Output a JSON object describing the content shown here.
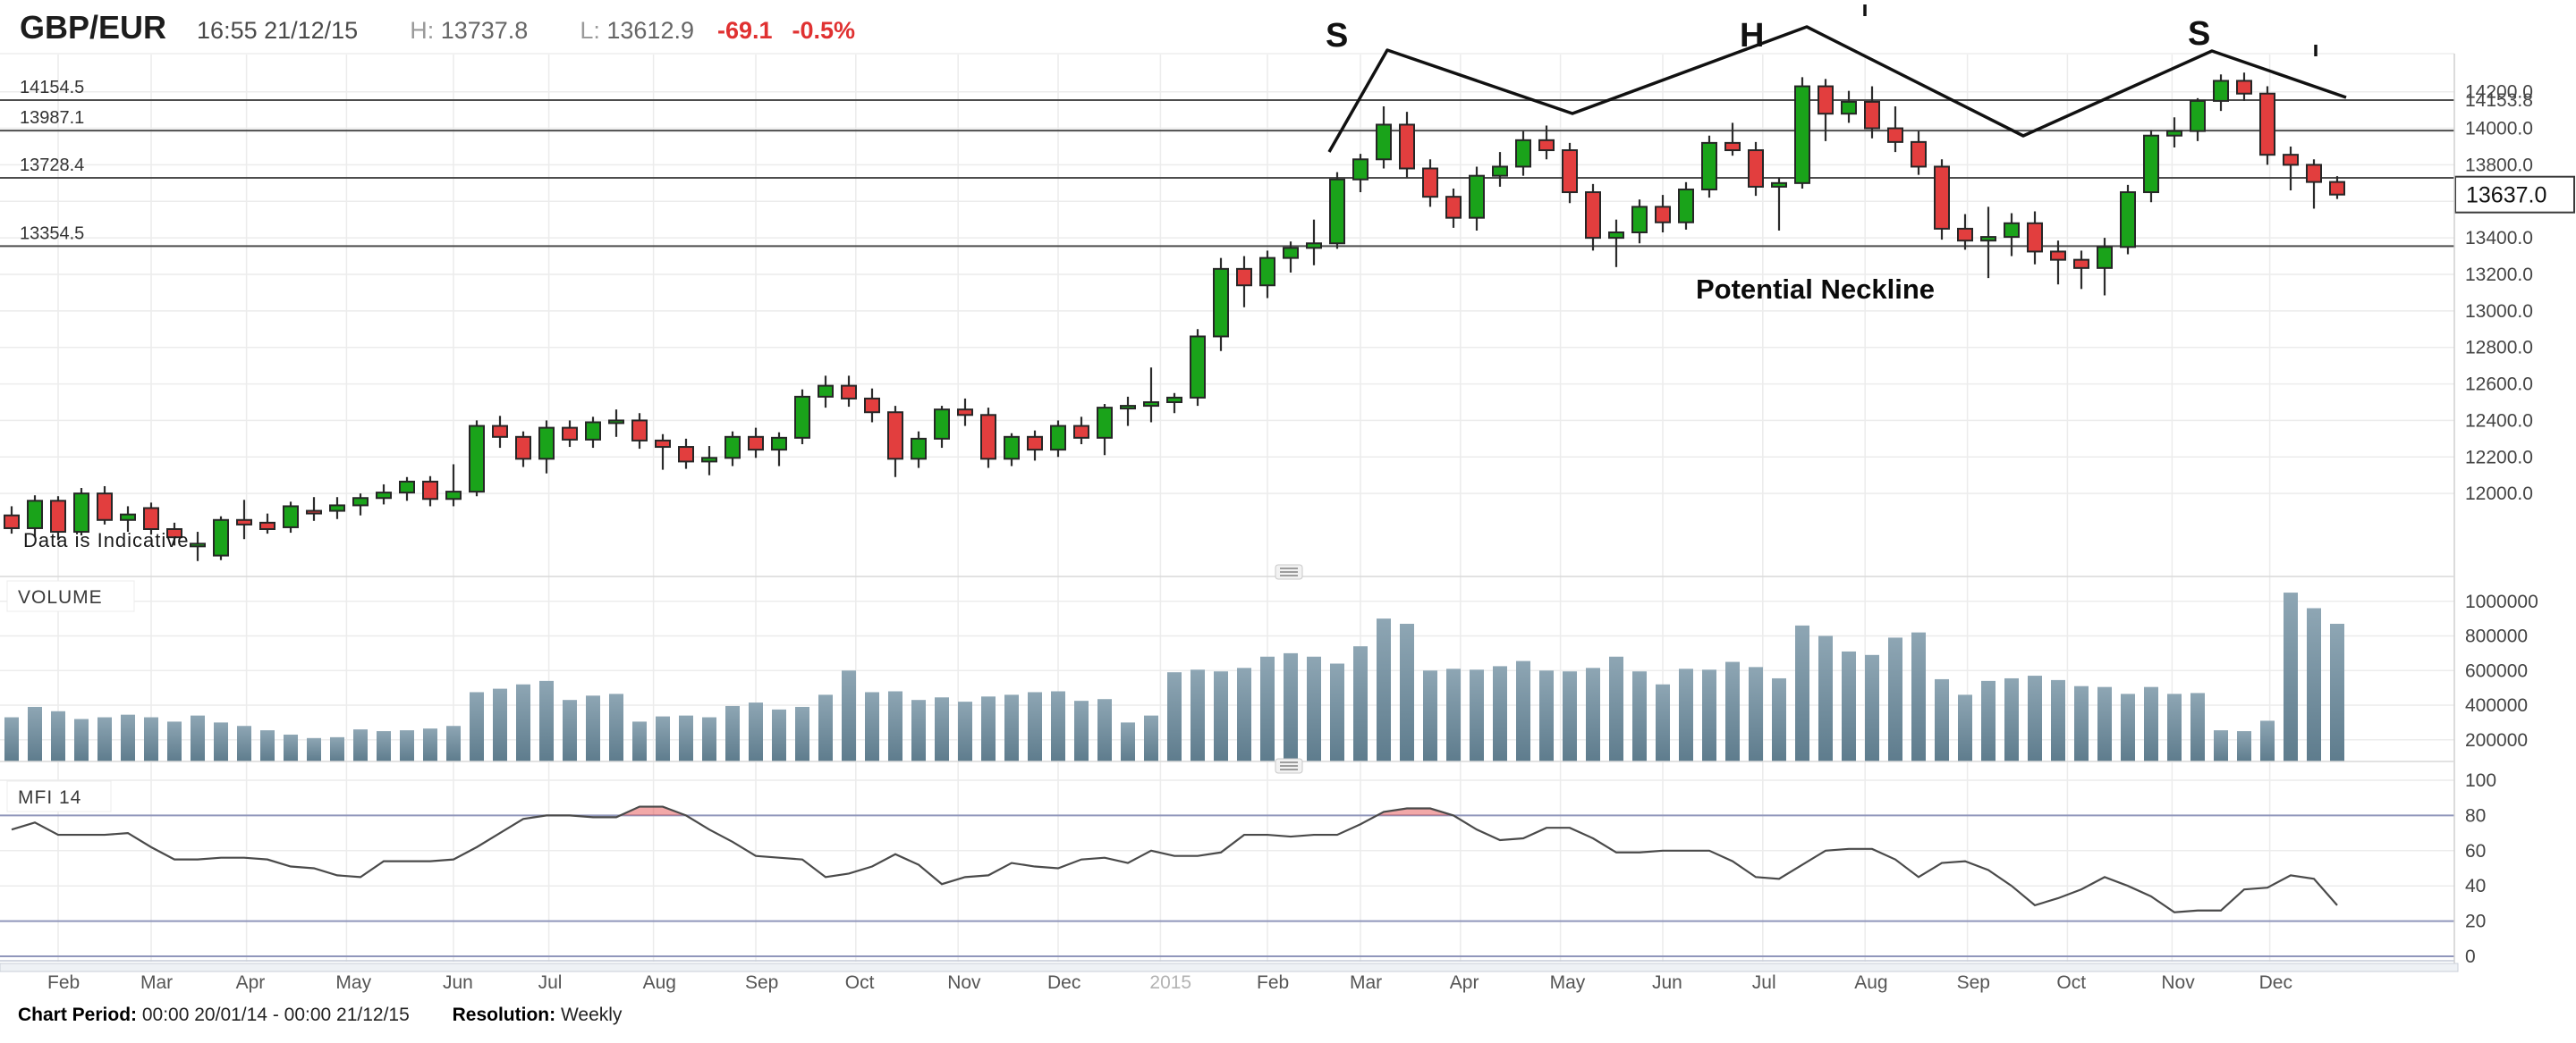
{
  "header": {
    "symbol": "GBP/EUR",
    "timestamp": "16:55 21/12/15",
    "high_label": "H:",
    "high": "13737.8",
    "low_label": "L:",
    "low": "13612.9",
    "change": "-69.1",
    "change_pct": "-0.5%"
  },
  "footer": {
    "period_label": "Chart Period:",
    "period_value": "00:00 20/01/14 - 00:00 21/12/15",
    "resolution_label": "Resolution:",
    "resolution_value": "Weekly"
  },
  "watermark": "Data is Indicative",
  "panes": {
    "volume_label": "VOLUME",
    "mfi_label": "MFI 14"
  },
  "annotations": {
    "left_shoulder": "S",
    "head": "H",
    "right_shoulder": "S",
    "neckline_label": "Potential Neckline"
  },
  "colors": {
    "up": "#1aa31a",
    "down": "#e23e3e",
    "candle_border": "#262626",
    "wick": "#2b2b2b",
    "grid": "#ececec",
    "support_line": "#4d4d4d",
    "annotation": "#111111",
    "volume_top": "#8ea6b4",
    "volume_bottom": "#5e7c8d",
    "mfi_line": "#4a4a4a",
    "mfi_threshold": "#9096bb",
    "overbought_fill": "rgba(226,62,62,0.45)",
    "negative": "#e03131",
    "axis_band": "#eef1f5",
    "axis_band_border": "#c9cfd8",
    "separator": "#d9d9d9",
    "grip_fill": "#f2f2f2",
    "grip_border": "#c9c9c9",
    "grip_lines": "#9d9d9d"
  },
  "price_axis": {
    "right_labels": [
      {
        "v": 14200,
        "t": "14200.0"
      },
      {
        "v": 14153.8,
        "t": "14153.8"
      },
      {
        "v": 14000,
        "t": "14000.0"
      },
      {
        "v": 13800,
        "t": "13800.0"
      },
      {
        "v": 13400,
        "t": "13400.0"
      },
      {
        "v": 13200,
        "t": "13200.0"
      },
      {
        "v": 13000,
        "t": "13000.0"
      },
      {
        "v": 12800,
        "t": "12800.0"
      },
      {
        "v": 12600,
        "t": "12600.0"
      },
      {
        "v": 12400,
        "t": "12400.0"
      },
      {
        "v": 12200,
        "t": "12200.0"
      },
      {
        "v": 12000,
        "t": "12000.0"
      }
    ],
    "left_levels": [
      {
        "v": 14154.5,
        "t": "14154.5"
      },
      {
        "v": 13987.1,
        "t": "13987.1"
      },
      {
        "v": 13728.4,
        "t": "13728.4"
      },
      {
        "v": 13354.5,
        "t": "13354.5"
      }
    ],
    "current": {
      "v": 13637,
      "t": "13637.0"
    }
  },
  "volume_axis": [
    {
      "v": 1000000,
      "t": "1000000"
    },
    {
      "v": 800000,
      "t": "800000"
    },
    {
      "v": 600000,
      "t": "600000"
    },
    {
      "v": 400000,
      "t": "400000"
    },
    {
      "v": 200000,
      "t": "200000"
    }
  ],
  "mfi_axis": [
    {
      "v": 100,
      "t": "100"
    },
    {
      "v": 80,
      "t": "80"
    },
    {
      "v": 60,
      "t": "60"
    },
    {
      "v": 40,
      "t": "40"
    },
    {
      "v": 20,
      "t": "20"
    },
    {
      "v": 0,
      "t": "0"
    }
  ],
  "x_axis": [
    {
      "t": "Feb",
      "w": 2.0
    },
    {
      "t": "Mar",
      "w": 6.0
    },
    {
      "t": "Apr",
      "w": 10.1
    },
    {
      "t": "May",
      "w": 14.4
    },
    {
      "t": "Jun",
      "w": 19.0
    },
    {
      "t": "Jul",
      "w": 23.1
    },
    {
      "t": "Aug",
      "w": 27.6
    },
    {
      "t": "Sep",
      "w": 32.0
    },
    {
      "t": "Oct",
      "w": 36.3
    },
    {
      "t": "Nov",
      "w": 40.7
    },
    {
      "t": "Dec",
      "w": 45.0
    },
    {
      "t": "2015",
      "w": 49.4,
      "year": true
    },
    {
      "t": "Feb",
      "w": 54.0
    },
    {
      "t": "Mar",
      "w": 58.0
    },
    {
      "t": "Apr",
      "w": 62.3
    },
    {
      "t": "May",
      "w": 66.6
    },
    {
      "t": "Jun",
      "w": 71.0
    },
    {
      "t": "Jul",
      "w": 75.3
    },
    {
      "t": "Aug",
      "w": 79.7
    },
    {
      "t": "Sep",
      "w": 84.1
    },
    {
      "t": "Oct",
      "w": 88.4
    },
    {
      "t": "Nov",
      "w": 92.9
    },
    {
      "t": "Dec",
      "w": 97.1
    }
  ],
  "chart_data": {
    "type": "candlestick",
    "title": "GBP/EUR",
    "resolution": "Weekly",
    "period_start": "00:00 20/01/14",
    "period_end": "00:00 21/12/15",
    "price_axis_range": [
      11570,
      14360
    ],
    "price_gridlines": {
      "min": 12000,
      "max": 14200,
      "step": 200
    },
    "volume_gridlines": {
      "min": 200000,
      "max": 1000000,
      "step": 200000
    },
    "mfi_gridlines": [
      0,
      20,
      40,
      60,
      80,
      100
    ],
    "mfi_overbought": 80,
    "mfi_oversold": 20,
    "support_levels": [
      14154.5,
      13987.1,
      13728.4,
      13354.5
    ],
    "current_price": 13637.0,
    "candles_ohlc": [
      [
        11880,
        11930,
        11780,
        11810
      ],
      [
        11810,
        11990,
        11760,
        11960
      ],
      [
        11960,
        11985,
        11745,
        11790
      ],
      [
        11790,
        12030,
        11770,
        12000
      ],
      [
        12000,
        12040,
        11830,
        11855
      ],
      [
        11855,
        11930,
        11790,
        11885
      ],
      [
        11920,
        11950,
        11775,
        11805
      ],
      [
        11805,
        11840,
        11715,
        11760
      ],
      [
        11720,
        11790,
        11630,
        11725
      ],
      [
        11660,
        11875,
        11635,
        11855
      ],
      [
        11855,
        11965,
        11750,
        11830
      ],
      [
        11840,
        11890,
        11780,
        11805
      ],
      [
        11815,
        11955,
        11785,
        11930
      ],
      [
        11905,
        11980,
        11850,
        11900
      ],
      [
        11905,
        11980,
        11860,
        11935
      ],
      [
        11935,
        12000,
        11880,
        11975
      ],
      [
        11975,
        12050,
        11940,
        12005
      ],
      [
        12005,
        12090,
        11960,
        12065
      ],
      [
        12065,
        12095,
        11930,
        11970
      ],
      [
        11970,
        12160,
        11930,
        12010
      ],
      [
        12010,
        12400,
        11985,
        12370
      ],
      [
        12370,
        12425,
        12250,
        12310
      ],
      [
        12310,
        12340,
        12145,
        12190
      ],
      [
        12190,
        12400,
        12110,
        12360
      ],
      [
        12360,
        12400,
        12255,
        12295
      ],
      [
        12295,
        12420,
        12250,
        12390
      ],
      [
        12395,
        12460,
        12310,
        12400
      ],
      [
        12400,
        12440,
        12245,
        12290
      ],
      [
        12290,
        12325,
        12130,
        12255
      ],
      [
        12255,
        12300,
        12135,
        12175
      ],
      [
        12175,
        12260,
        12100,
        12195
      ],
      [
        12195,
        12340,
        12150,
        12310
      ],
      [
        12310,
        12360,
        12195,
        12240
      ],
      [
        12240,
        12335,
        12150,
        12305
      ],
      [
        12305,
        12570,
        12270,
        12530
      ],
      [
        12530,
        12645,
        12470,
        12590
      ],
      [
        12590,
        12645,
        12475,
        12520
      ],
      [
        12520,
        12575,
        12390,
        12445
      ],
      [
        12445,
        12480,
        12090,
        12190
      ],
      [
        12190,
        12340,
        12140,
        12300
      ],
      [
        12300,
        12480,
        12250,
        12460
      ],
      [
        12460,
        12520,
        12370,
        12430
      ],
      [
        12430,
        12470,
        12140,
        12190
      ],
      [
        12190,
        12330,
        12150,
        12310
      ],
      [
        12310,
        12345,
        12180,
        12240
      ],
      [
        12240,
        12400,
        12200,
        12370
      ],
      [
        12370,
        12420,
        12270,
        12305
      ],
      [
        12305,
        12490,
        12210,
        12470
      ],
      [
        12470,
        12530,
        12370,
        12480
      ],
      [
        12480,
        12690,
        12390,
        12500
      ],
      [
        12500,
        12550,
        12440,
        12525
      ],
      [
        12525,
        12900,
        12480,
        12860
      ],
      [
        12860,
        13290,
        12780,
        13230
      ],
      [
        13230,
        13300,
        13020,
        13140
      ],
      [
        13140,
        13330,
        13070,
        13290
      ],
      [
        13290,
        13380,
        13210,
        13345
      ],
      [
        13345,
        13500,
        13250,
        13370
      ],
      [
        13370,
        13760,
        13340,
        13720
      ],
      [
        13720,
        13860,
        13650,
        13830
      ],
      [
        13830,
        14120,
        13780,
        14020
      ],
      [
        14020,
        14090,
        13730,
        13780
      ],
      [
        13780,
        13830,
        13570,
        13625
      ],
      [
        13625,
        13670,
        13455,
        13510
      ],
      [
        13510,
        13790,
        13440,
        13740
      ],
      [
        13740,
        13870,
        13680,
        13790
      ],
      [
        13790,
        13985,
        13740,
        13935
      ],
      [
        13935,
        14015,
        13830,
        13880
      ],
      [
        13880,
        13920,
        13590,
        13650
      ],
      [
        13650,
        13695,
        13330,
        13400
      ],
      [
        13400,
        13500,
        13240,
        13430
      ],
      [
        13430,
        13610,
        13370,
        13570
      ],
      [
        13570,
        13635,
        13430,
        13485
      ],
      [
        13485,
        13705,
        13445,
        13665
      ],
      [
        13665,
        13960,
        13620,
        13920
      ],
      [
        13920,
        14030,
        13850,
        13880
      ],
      [
        13880,
        13925,
        13630,
        13680
      ],
      [
        13680,
        13730,
        13440,
        13700
      ],
      [
        13700,
        14280,
        13670,
        14230
      ],
      [
        14230,
        14270,
        13930,
        14080
      ],
      [
        14080,
        14205,
        14030,
        14145
      ],
      [
        14145,
        14230,
        13945,
        14000
      ],
      [
        14000,
        14120,
        13870,
        13925
      ],
      [
        13925,
        13985,
        13745,
        13790
      ],
      [
        13790,
        13830,
        13390,
        13450
      ],
      [
        13450,
        13530,
        13335,
        13385
      ],
      [
        13385,
        13570,
        13180,
        13405
      ],
      [
        13405,
        13535,
        13300,
        13480
      ],
      [
        13480,
        13545,
        13255,
        13325
      ],
      [
        13325,
        13385,
        13145,
        13280
      ],
      [
        13280,
        13330,
        13120,
        13235
      ],
      [
        13235,
        13400,
        13085,
        13350
      ],
      [
        13350,
        13690,
        13310,
        13650
      ],
      [
        13650,
        13990,
        13595,
        13960
      ],
      [
        13960,
        14060,
        13895,
        13985
      ],
      [
        13985,
        14165,
        13930,
        14150
      ],
      [
        14150,
        14295,
        14095,
        14260
      ],
      [
        14260,
        14305,
        14150,
        14190
      ],
      [
        14190,
        14230,
        13800,
        13855
      ],
      [
        13855,
        13900,
        13660,
        13800
      ],
      [
        13800,
        13830,
        13560,
        13706
      ],
      [
        13706,
        13737.8,
        13612.9,
        13637
      ]
    ],
    "volume": [
      330000,
      390000,
      365000,
      320000,
      330000,
      345000,
      330000,
      305000,
      340000,
      300000,
      280000,
      255000,
      230000,
      210000,
      215000,
      260000,
      250000,
      255000,
      265000,
      280000,
      475000,
      495000,
      520000,
      540000,
      430000,
      455000,
      465000,
      305000,
      335000,
      340000,
      330000,
      395000,
      415000,
      375000,
      390000,
      460000,
      600000,
      475000,
      480000,
      430000,
      445000,
      420000,
      450000,
      460000,
      475000,
      480000,
      425000,
      435000,
      300000,
      340000,
      590000,
      605000,
      595000,
      615000,
      680000,
      700000,
      680000,
      640000,
      740000,
      900000,
      870000,
      600000,
      610000,
      605000,
      625000,
      655000,
      600000,
      595000,
      615000,
      680000,
      595000,
      520000,
      610000,
      605000,
      650000,
      620000,
      555000,
      860000,
      800000,
      710000,
      690000,
      790000,
      820000,
      550000,
      460000,
      540000,
      555000,
      570000,
      545000,
      510000,
      505000,
      465000,
      505000,
      465000,
      470000,
      255000,
      250000,
      310000,
      1050000,
      960000,
      870000
    ],
    "mfi": [
      72,
      76,
      69,
      69,
      69,
      70,
      62,
      55,
      55,
      56,
      56,
      55,
      51,
      50,
      46,
      45,
      54,
      54,
      54,
      55,
      62,
      70,
      78,
      80,
      80,
      79,
      79,
      85,
      85,
      80,
      72,
      65,
      57,
      56,
      55,
      45,
      47,
      51,
      58,
      52,
      41,
      45,
      46,
      53,
      51,
      50,
      55,
      56,
      53,
      60,
      57,
      57,
      59,
      69,
      69,
      68,
      69,
      69,
      75,
      82,
      84,
      84,
      80,
      72,
      66,
      67,
      73,
      73,
      67,
      59,
      59,
      60,
      60,
      60,
      54,
      45,
      44,
      52,
      60,
      61,
      61,
      55,
      45,
      53,
      54,
      49,
      40,
      29,
      33,
      38,
      45,
      40,
      34,
      25,
      26,
      26,
      38,
      39,
      46,
      44,
      29
    ],
    "neckline_polyline_prices_note": "hand-drawn head-and-shoulders zigzag annotation"
  }
}
